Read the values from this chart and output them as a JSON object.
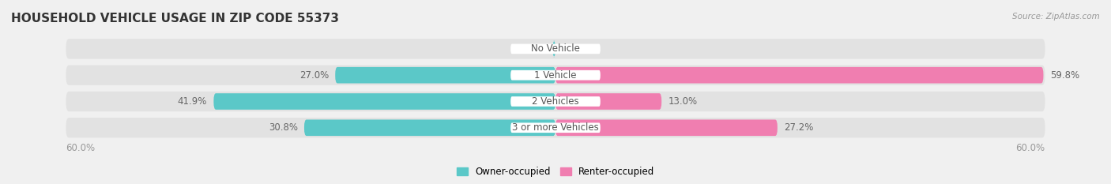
{
  "title": "HOUSEHOLD VEHICLE USAGE IN ZIP CODE 55373",
  "source": "Source: ZipAtlas.com",
  "categories": [
    "No Vehicle",
    "1 Vehicle",
    "2 Vehicles",
    "3 or more Vehicles"
  ],
  "owner_values": [
    0.35,
    27.0,
    41.9,
    30.8
  ],
  "renter_values": [
    0.0,
    59.8,
    13.0,
    27.2
  ],
  "owner_color": "#5bc8c8",
  "renter_color": "#f07eb0",
  "bg_color": "#f0f0f0",
  "bar_bg_color": "#e2e2e2",
  "axis_max": 60.0,
  "legend_owner": "Owner-occupied",
  "legend_renter": "Renter-occupied",
  "axis_label_left": "60.0%",
  "axis_label_right": "60.0%",
  "title_fontsize": 11,
  "label_fontsize": 8.5,
  "category_fontsize": 8.5
}
